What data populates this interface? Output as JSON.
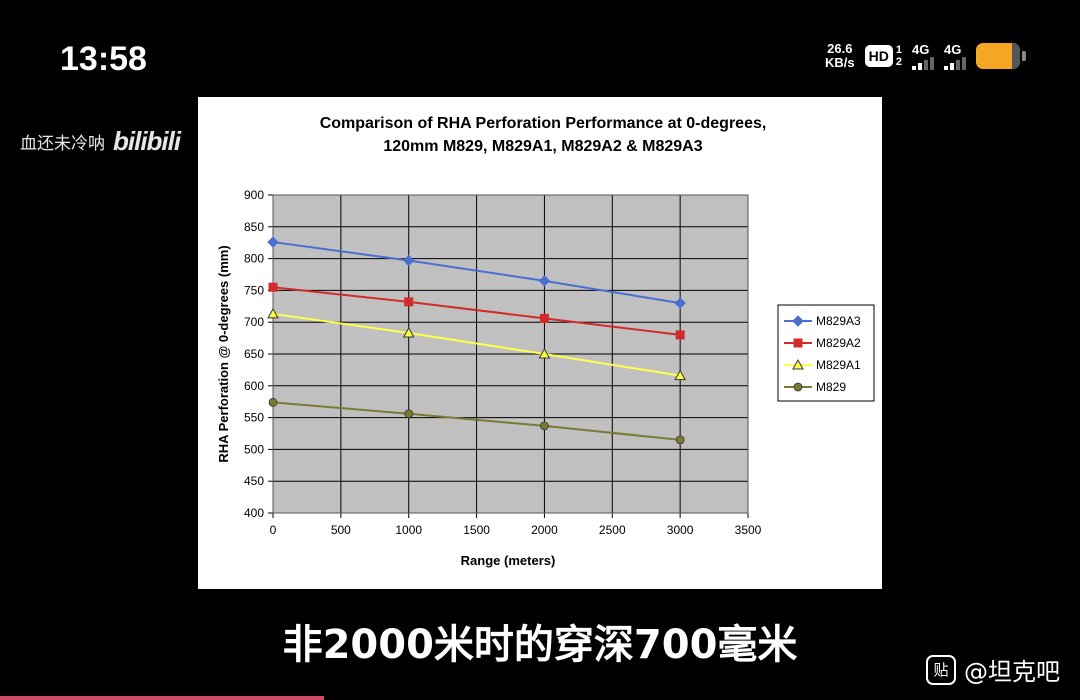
{
  "status_bar": {
    "time": "13:58",
    "net_speed_value": "26.6",
    "net_speed_unit": "KB/s",
    "hd_label": "HD",
    "hd_sim": "1",
    "hd_sim2": "2",
    "signal1": "4G",
    "signal2": "4G",
    "battery_color": "#f5a623"
  },
  "video": {
    "uploader_name": "血还未冷呐",
    "platform_logo": "bilibili",
    "subtitle": "非2000米时的穿深700毫米",
    "watermark_text": "@坦克吧",
    "watermark_icon_text": "贴",
    "progress": 0.3
  },
  "chart_data": {
    "type": "line",
    "title": "Comparison of RHA Perforation Performance at 0-degrees,",
    "subtitle": "120mm M829, M829A1, M829A2 & M829A3",
    "xlabel": "Range (meters)",
    "ylabel": "RHA Perforation @ 0-degrees (mm)",
    "xlim": [
      0,
      3500
    ],
    "ylim": [
      400,
      900
    ],
    "xticks": [
      0,
      500,
      1000,
      1500,
      2000,
      2500,
      3000,
      3500
    ],
    "yticks": [
      400,
      450,
      500,
      550,
      600,
      650,
      700,
      750,
      800,
      850,
      900
    ],
    "grid": true,
    "plot_background": "#c0c0c0",
    "legend_position": "right",
    "x": [
      0,
      1000,
      2000,
      3000
    ],
    "series": [
      {
        "name": "M829A3",
        "values": [
          826,
          797,
          765,
          730
        ],
        "color": "#4a6fd1",
        "marker": "diamond"
      },
      {
        "name": "M829A2",
        "values": [
          755,
          732,
          706,
          680
        ],
        "color": "#d22b2b",
        "marker": "square"
      },
      {
        "name": "M829A1",
        "values": [
          713,
          683,
          650,
          616
        ],
        "color": "#ffff4a",
        "marker": "triangle"
      },
      {
        "name": "M829",
        "values": [
          574,
          556,
          537,
          515
        ],
        "color": "#7a7a32",
        "marker": "circle"
      }
    ]
  }
}
